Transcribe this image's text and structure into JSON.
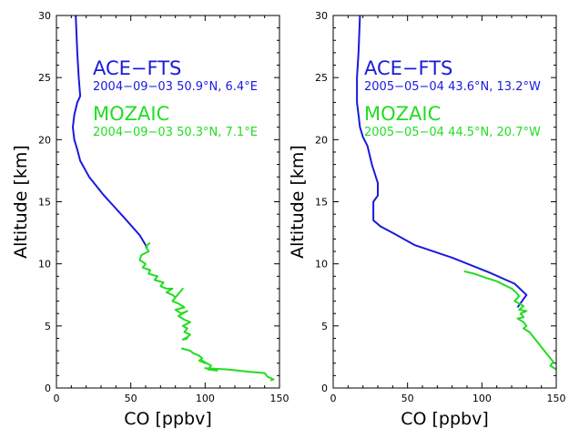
{
  "chart_data": [
    {
      "type": "line",
      "xlabel": "CO [ppbv]",
      "ylabel": "Altitude [km]",
      "xlim": [
        0,
        150
      ],
      "ylim": [
        0,
        30
      ],
      "xticks": [
        0,
        50,
        100,
        150
      ],
      "yticks": [
        0,
        5,
        10,
        15,
        20,
        25,
        30
      ],
      "legend": [
        {
          "name": "ACE−FTS",
          "info": "2004−09−03 50.9°N, 6.4°E",
          "color": "#1a1adc"
        },
        {
          "name": "MOZAIC",
          "info": "2004−09−03 50.3°N, 7.1°E",
          "color": "#22dd22"
        }
      ],
      "series": [
        {
          "name": "ACE−FTS",
          "color": "#1a1adc",
          "x": [
            13,
            14,
            15,
            16,
            14,
            12,
            11,
            12,
            14,
            16,
            22,
            32,
            45,
            56,
            61
          ],
          "y": [
            30,
            27,
            25,
            23.5,
            23,
            22,
            21,
            20,
            19.2,
            18.3,
            17,
            15.5,
            13.8,
            12.3,
            11.3
          ]
        },
        {
          "name": "MOZAIC",
          "color": "#22dd22",
          "x": [
            63,
            60,
            62,
            57,
            56,
            60,
            58,
            63,
            62,
            68,
            66,
            72,
            70,
            74,
            78,
            74,
            78,
            80,
            85,
            78,
            82,
            86,
            80,
            84,
            88,
            82,
            86,
            90,
            85,
            88,
            86,
            90,
            88,
            85,
            88,
            86
          ],
          "y": [
            11.7,
            11.4,
            11.0,
            10.7,
            10.3,
            10.0,
            9.7,
            9.5,
            9.2,
            9.0,
            8.7,
            8.5,
            8.2,
            8.0,
            8.0,
            7.7,
            7.5,
            7.3,
            8.0,
            7.0,
            6.8,
            6.5,
            6.3,
            6.0,
            6.2,
            5.8,
            5.5,
            5.3,
            5.0,
            4.8,
            4.5,
            4.3,
            4.1,
            3.9,
            4.0,
            3.9
          ]
        },
        {
          "name": "MOZAIC",
          "color": "#22dd22",
          "x": [
            84,
            90,
            92,
            96,
            98,
            96,
            100,
            98,
            104,
            102,
            108,
            100,
            115,
            130,
            140,
            142,
            146,
            144
          ],
          "y": [
            3.2,
            3.0,
            2.8,
            2.6,
            2.4,
            2.2,
            2.0,
            2.2,
            1.8,
            1.5,
            1.4,
            1.6,
            1.5,
            1.3,
            1.2,
            0.9,
            0.7,
            0.6
          ]
        }
      ]
    },
    {
      "type": "line",
      "xlabel": "CO [ppbv]",
      "ylabel": "Altitude [km]",
      "xlim": [
        0,
        150
      ],
      "ylim": [
        0,
        30
      ],
      "xticks": [
        0,
        50,
        100,
        150
      ],
      "yticks": [
        0,
        5,
        10,
        15,
        20,
        25,
        30
      ],
      "legend": [
        {
          "name": "ACE−FTS",
          "info": "2005−05−04 43.6°N, 13.2°W",
          "color": "#1a1adc"
        },
        {
          "name": "MOZAIC",
          "info": "2005−05−04 44.5°N, 20.7°W",
          "color": "#22dd22"
        }
      ],
      "series": [
        {
          "name": "ACE−FTS",
          "color": "#1a1adc",
          "x": [
            18,
            17,
            16,
            16,
            17,
            18,
            20,
            23,
            26,
            30,
            30,
            27,
            27,
            32,
            40,
            55,
            80,
            105,
            122,
            130,
            124
          ],
          "y": [
            30,
            27,
            25,
            23,
            22,
            21,
            20.2,
            19.5,
            18,
            16.5,
            15.5,
            15,
            13.5,
            13,
            12.5,
            11.5,
            10.5,
            9.3,
            8.4,
            7.5,
            6.5
          ]
        },
        {
          "name": "MOZAIC",
          "color": "#22dd22",
          "x": [
            88,
            95,
            102,
            110,
            115,
            120,
            123,
            125,
            122,
            125,
            128,
            125,
            130,
            126,
            128,
            124,
            128,
            130,
            128,
            132,
            134,
            136,
            138,
            140,
            142,
            144,
            146,
            148,
            146,
            150
          ],
          "y": [
            9.4,
            9.2,
            8.9,
            8.6,
            8.3,
            8.0,
            7.7,
            7.4,
            7.0,
            6.8,
            6.6,
            6.3,
            6.2,
            6.0,
            5.7,
            5.6,
            5.3,
            5.0,
            4.8,
            4.5,
            4.2,
            3.9,
            3.6,
            3.3,
            3.0,
            2.7,
            2.4,
            2.1,
            1.8,
            1.5
          ]
        }
      ]
    }
  ]
}
